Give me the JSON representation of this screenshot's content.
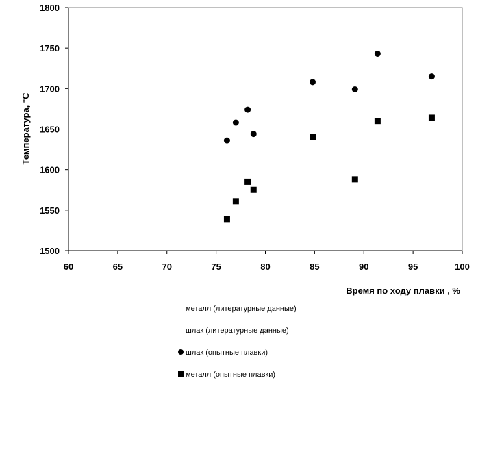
{
  "chart_data": {
    "type": "scatter",
    "xlabel": "Время по ходу плавки ,   %",
    "ylabel": "Температура,  °С",
    "xlim": [
      60,
      100
    ],
    "ylim": [
      1500,
      1800
    ],
    "x_ticks": [
      "60",
      "65",
      "70",
      "75",
      "80",
      "85",
      "90",
      "95",
      "100"
    ],
    "y_ticks": [
      "1500",
      "1550",
      "1600",
      "1650",
      "1700",
      "1750",
      "1800"
    ],
    "grid": false,
    "legend_position": "bottom",
    "series": [
      {
        "name": "металл (литературные данные)",
        "marker": "none",
        "points": []
      },
      {
        "name": "шлак (литературные данные)",
        "marker": "none",
        "points": []
      },
      {
        "name": "шлак (опытные плавки)",
        "marker": "circle",
        "points": [
          {
            "x": 76.1,
            "y": 1636
          },
          {
            "x": 77.0,
            "y": 1658
          },
          {
            "x": 78.2,
            "y": 1674
          },
          {
            "x": 78.8,
            "y": 1644
          },
          {
            "x": 84.8,
            "y": 1708
          },
          {
            "x": 89.1,
            "y": 1699
          },
          {
            "x": 91.4,
            "y": 1743
          },
          {
            "x": 96.9,
            "y": 1715
          }
        ]
      },
      {
        "name": "металл (опытные плавки)",
        "marker": "square",
        "points": [
          {
            "x": 76.1,
            "y": 1539
          },
          {
            "x": 77.0,
            "y": 1561
          },
          {
            "x": 78.2,
            "y": 1585
          },
          {
            "x": 78.8,
            "y": 1575
          },
          {
            "x": 84.8,
            "y": 1640
          },
          {
            "x": 89.1,
            "y": 1588
          },
          {
            "x": 91.4,
            "y": 1660
          },
          {
            "x": 96.9,
            "y": 1664
          }
        ]
      }
    ],
    "colors": {
      "marker": "#000000",
      "axis": "#000000",
      "background": "#ffffff"
    }
  }
}
